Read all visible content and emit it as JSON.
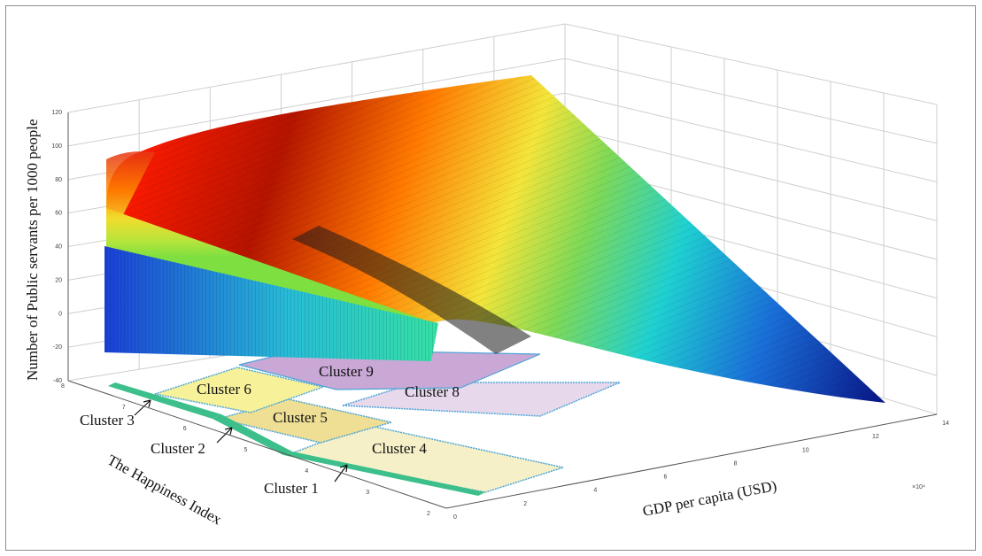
{
  "chart_data": {
    "type": "surface3d",
    "zlabel": "Number of Public servants per 1000 people",
    "xlabel": "GDP per capita (USD)",
    "ylabel": "The Happiness Index",
    "x_exponent": "×10⁴",
    "x_ticks": [
      "0",
      "2",
      "4",
      "6",
      "8",
      "10",
      "12",
      "14"
    ],
    "y_ticks": [
      "2",
      "3",
      "4",
      "5",
      "6",
      "7",
      "8"
    ],
    "z_ticks": [
      "-40",
      "-20",
      "0",
      "20",
      "40",
      "60",
      "80",
      "100",
      "120"
    ],
    "xlim": [
      0,
      140000
    ],
    "ylim": [
      2,
      8
    ],
    "zlim": [
      -40,
      120
    ],
    "colormap": "jet",
    "grid": true,
    "clusters": [
      {
        "name": "Cluster 1",
        "fill": "#f5f0c8",
        "x": [
          0,
          60000
        ],
        "y": [
          3,
          4.5
        ]
      },
      {
        "name": "Cluster 2",
        "fill": "#b4e0c8",
        "x": [
          0,
          10000
        ],
        "y": [
          4.5,
          6
        ]
      },
      {
        "name": "Cluster 3",
        "fill": "#9fd8c0",
        "x": [
          0,
          10000
        ],
        "y": [
          6,
          7.5
        ]
      },
      {
        "name": "Cluster 4",
        "fill": "#f5f0c8",
        "x": [
          10000,
          60000
        ],
        "y": [
          3,
          4.5
        ]
      },
      {
        "name": "Cluster 5",
        "fill": "#eedf95",
        "x": [
          10000,
          30000
        ],
        "y": [
          4.5,
          6
        ]
      },
      {
        "name": "Cluster 6",
        "fill": "#f7f29a",
        "x": [
          10000,
          30000
        ],
        "y": [
          6,
          7.5
        ]
      },
      {
        "name": "Cluster 8",
        "fill": "#e8d8ec",
        "x": [
          30000,
          60000
        ],
        "y": [
          4.5,
          7.5
        ]
      },
      {
        "name": "Cluster 9",
        "fill": "#c9a8d6",
        "x": [
          30000,
          60000
        ],
        "y": [
          6,
          7.5
        ]
      }
    ],
    "surface_corners": {
      "high_gdp_low_happiness": -40,
      "high_gdp_high_happiness": 120,
      "low_gdp_high_happiness": 120,
      "low_gdp_low_happiness": -40
    }
  }
}
